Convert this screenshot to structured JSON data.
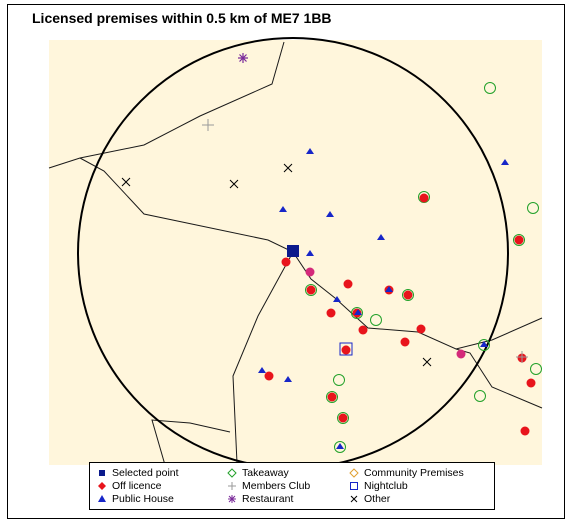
{
  "map": {
    "title": "Licensed premises within 0.5 km of ME7 1BB",
    "colors": {
      "background": "#fff6dc",
      "selected": "#0b1a8c",
      "off_licence": "#e8141c",
      "public_house": "#1726c8",
      "takeaway": "#22a12a",
      "members_club": "#9a9a9a",
      "restaurant": "#7a2a9a",
      "community": "#e0a030",
      "nightclub": "#1726c8",
      "other": "#000000"
    }
  },
  "legend": {
    "items": [
      {
        "label": "Selected point",
        "symbol": "selected-square"
      },
      {
        "label": "Off licence",
        "symbol": "red-diamond"
      },
      {
        "label": "Public House",
        "symbol": "blue-triangle"
      },
      {
        "label": "Takeaway",
        "symbol": "green-diamond-outline"
      },
      {
        "label": "Members Club",
        "symbol": "grey-plus"
      },
      {
        "label": "Restaurant",
        "symbol": "purple-asterisk"
      },
      {
        "label": "Community Premises",
        "symbol": "orange-diamond-outline"
      },
      {
        "label": "Nightclub",
        "symbol": "blue-square-outline"
      },
      {
        "label": "Other",
        "symbol": "black-cross"
      }
    ]
  }
}
